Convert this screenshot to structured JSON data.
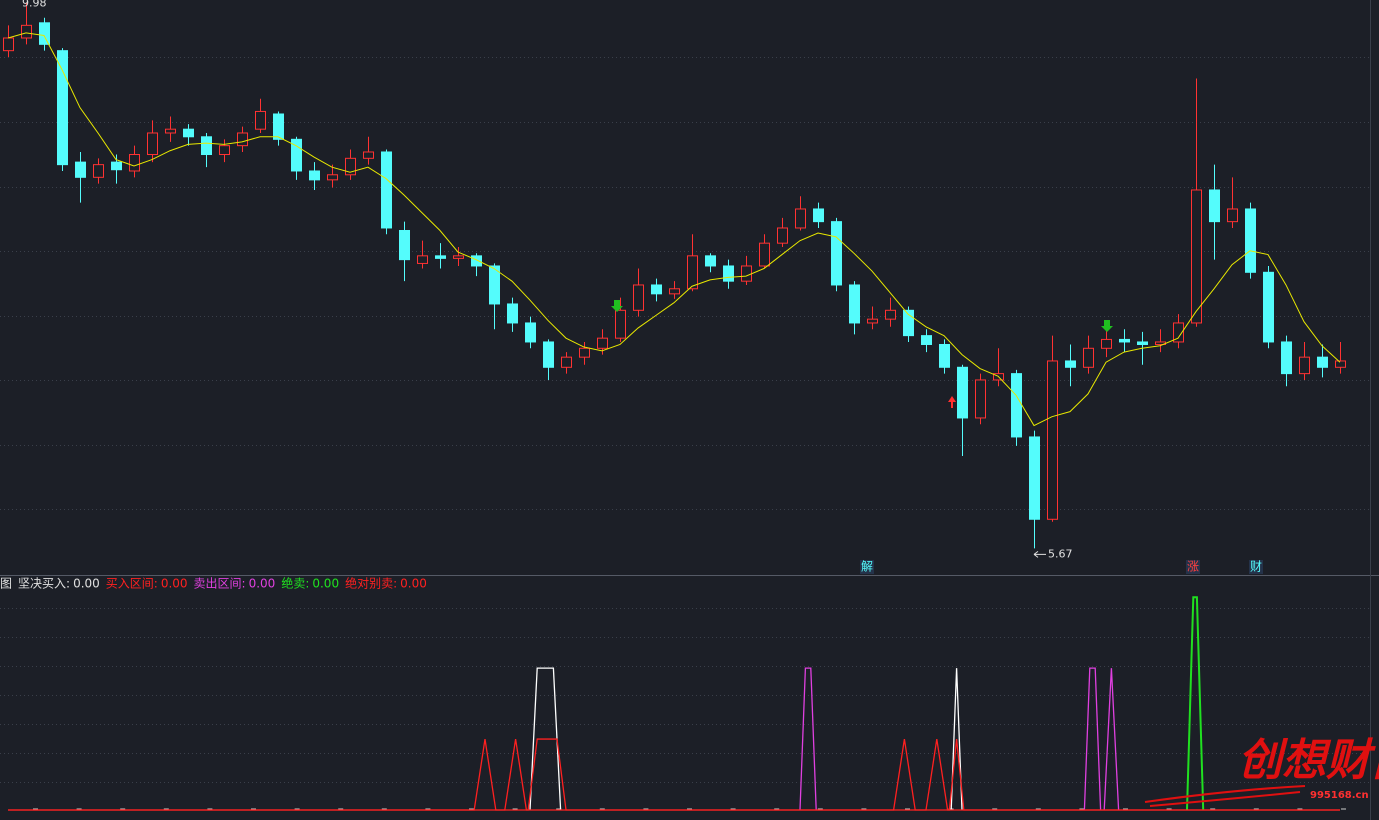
{
  "chart_data": {
    "type": "candlestick",
    "ylim": [
      5.46,
      10.0
    ],
    "up_color": "#ff3232",
    "down_color": "#54fcfc",
    "ma_color": "#e8e800",
    "open": [
      9.6,
      9.7,
      9.82,
      9.6,
      8.72,
      8.6,
      8.72,
      8.65,
      8.78,
      8.95,
      8.98,
      8.92,
      8.78,
      8.85,
      8.98,
      9.1,
      8.9,
      8.65,
      8.58,
      8.62,
      8.75,
      8.8,
      8.18,
      7.92,
      7.98,
      7.96,
      7.98,
      7.9,
      7.6,
      7.45,
      7.3,
      7.1,
      7.18,
      7.25,
      7.33,
      7.55,
      7.75,
      7.68,
      7.72,
      7.98,
      7.9,
      7.78,
      7.9,
      8.08,
      8.2,
      8.35,
      8.25,
      7.75,
      7.45,
      7.48,
      7.55,
      7.35,
      7.28,
      7.1,
      6.7,
      7.0,
      7.05,
      6.55,
      5.9,
      7.15,
      7.1,
      7.25,
      7.32,
      7.3,
      7.28,
      7.3,
      7.45,
      8.5,
      8.25,
      8.35,
      7.85,
      7.3,
      7.05,
      7.18,
      7.1
    ],
    "high": [
      9.8,
      9.98,
      9.86,
      9.62,
      8.8,
      8.75,
      8.78,
      8.85,
      9.05,
      9.08,
      9.02,
      8.95,
      8.9,
      9.0,
      9.22,
      9.12,
      8.92,
      8.72,
      8.7,
      8.82,
      8.92,
      8.82,
      8.25,
      8.1,
      8.08,
      8.05,
      8.0,
      7.92,
      7.65,
      7.5,
      7.32,
      7.22,
      7.3,
      7.4,
      7.65,
      7.88,
      7.8,
      7.78,
      8.15,
      8.0,
      7.95,
      7.98,
      8.15,
      8.28,
      8.45,
      8.4,
      8.28,
      7.78,
      7.58,
      7.65,
      7.58,
      7.4,
      7.32,
      7.12,
      7.05,
      7.25,
      7.08,
      6.6,
      7.35,
      7.28,
      7.35,
      7.45,
      7.4,
      7.38,
      7.4,
      7.52,
      9.38,
      8.7,
      8.6,
      8.4,
      7.9,
      7.35,
      7.3,
      7.28,
      7.3
    ],
    "low": [
      9.55,
      9.65,
      9.6,
      8.65,
      8.4,
      8.55,
      8.55,
      8.6,
      8.72,
      8.88,
      8.85,
      8.68,
      8.72,
      8.8,
      8.95,
      8.85,
      8.58,
      8.5,
      8.52,
      8.58,
      8.7,
      8.15,
      7.78,
      7.88,
      7.88,
      7.9,
      7.82,
      7.4,
      7.38,
      7.25,
      7.0,
      7.05,
      7.12,
      7.2,
      7.3,
      7.5,
      7.62,
      7.64,
      7.7,
      7.85,
      7.72,
      7.75,
      7.88,
      8.05,
      8.18,
      8.2,
      7.7,
      7.36,
      7.4,
      7.42,
      7.3,
      7.22,
      7.05,
      6.4,
      6.65,
      6.95,
      6.48,
      5.67,
      5.88,
      6.95,
      7.05,
      7.18,
      7.22,
      7.12,
      7.22,
      7.25,
      7.42,
      7.95,
      8.2,
      7.8,
      7.25,
      6.95,
      7.0,
      7.02,
      7.05
    ],
    "close": [
      9.7,
      9.8,
      9.65,
      8.7,
      8.6,
      8.7,
      8.66,
      8.78,
      8.95,
      8.98,
      8.92,
      8.78,
      8.85,
      8.95,
      9.12,
      8.9,
      8.65,
      8.58,
      8.62,
      8.75,
      8.8,
      8.2,
      7.95,
      7.98,
      7.96,
      7.98,
      7.9,
      7.6,
      7.45,
      7.3,
      7.1,
      7.18,
      7.25,
      7.33,
      7.55,
      7.75,
      7.68,
      7.72,
      7.98,
      7.9,
      7.78,
      7.9,
      8.08,
      8.2,
      8.35,
      8.25,
      7.75,
      7.45,
      7.48,
      7.55,
      7.35,
      7.28,
      7.1,
      6.7,
      7.0,
      7.05,
      6.55,
      5.9,
      7.15,
      7.1,
      7.25,
      7.32,
      7.3,
      7.28,
      7.3,
      7.45,
      8.5,
      8.25,
      8.35,
      7.85,
      7.3,
      7.05,
      7.18,
      7.1,
      7.15
    ],
    "ma": [
      9.7,
      9.74,
      9.72,
      9.45,
      9.15,
      8.95,
      8.74,
      8.69,
      8.74,
      8.81,
      8.86,
      8.87,
      8.86,
      8.88,
      8.92,
      8.92,
      8.85,
      8.76,
      8.68,
      8.64,
      8.68,
      8.59,
      8.46,
      8.32,
      8.18,
      8.01,
      7.95,
      7.88,
      7.78,
      7.63,
      7.47,
      7.33,
      7.26,
      7.23,
      7.28,
      7.41,
      7.51,
      7.61,
      7.74,
      7.79,
      7.81,
      7.82,
      7.88,
      7.99,
      8.1,
      8.16,
      8.13,
      8.0,
      7.86,
      7.69,
      7.52,
      7.42,
      7.35,
      7.2,
      7.09,
      7.03,
      6.88,
      6.64,
      6.71,
      6.75,
      6.89,
      7.14,
      7.22,
      7.25,
      7.27,
      7.33,
      7.54,
      7.72,
      7.91,
      8.02,
      7.99,
      7.75,
      7.46,
      7.27,
      7.14
    ],
    "event_labels": [
      "解",
      "涨",
      "财"
    ],
    "indicator": {
      "prefix": "图",
      "ylim": [
        0,
        160
      ],
      "series": [
        {
          "name": "坚决买入:",
          "value_label": "0.00",
          "color": "#ffffff",
          "x": [
            29.0,
            29.4,
            30.3,
            30.7,
            null,
            52.4,
            52.7,
            53.0
          ],
          "values": [
            0,
            100,
            100,
            0,
            null,
            0,
            100,
            0
          ]
        },
        {
          "name": "买入区间:",
          "value_label": "0.00",
          "color": "#ff2020",
          "x": [
            0,
            25.9,
            26.5,
            27.1,
            27.6,
            28.2,
            28.8,
            28.9,
            29.4,
            30.5,
            31.0,
            49.2,
            49.8,
            50.4,
            51.0,
            51.6,
            52.2,
            52.3,
            52.7,
            53.1,
            74
          ],
          "values": [
            0,
            0,
            50,
            0,
            0,
            50,
            0,
            0,
            50,
            50,
            0,
            0,
            50,
            0,
            0,
            50,
            0,
            0,
            50,
            0,
            0
          ]
        },
        {
          "name": "卖出区间:",
          "value_label": "0.00",
          "color": "#e040e0",
          "x": [
            44.0,
            44.3,
            44.6,
            44.9,
            null,
            59.8,
            60.1,
            60.4,
            60.7,
            null,
            60.9,
            61.3,
            61.7
          ],
          "values": [
            0,
            100,
            100,
            0,
            null,
            0,
            100,
            100,
            0,
            null,
            0,
            100,
            0
          ]
        },
        {
          "name": "绝卖:",
          "value_label": "0.00",
          "color": "#20e020",
          "x": [
            65.5,
            65.85,
            66.05,
            66.4
          ],
          "values": [
            0,
            150,
            150,
            0
          ]
        },
        {
          "name": "绝对别卖:",
          "value_label": "0.00",
          "color": "#ff2020",
          "x": [
            0,
            74
          ],
          "values": [
            0,
            0
          ]
        }
      ]
    },
    "watermark": "创想财富",
    "watermark_url": "995168.cn"
  }
}
